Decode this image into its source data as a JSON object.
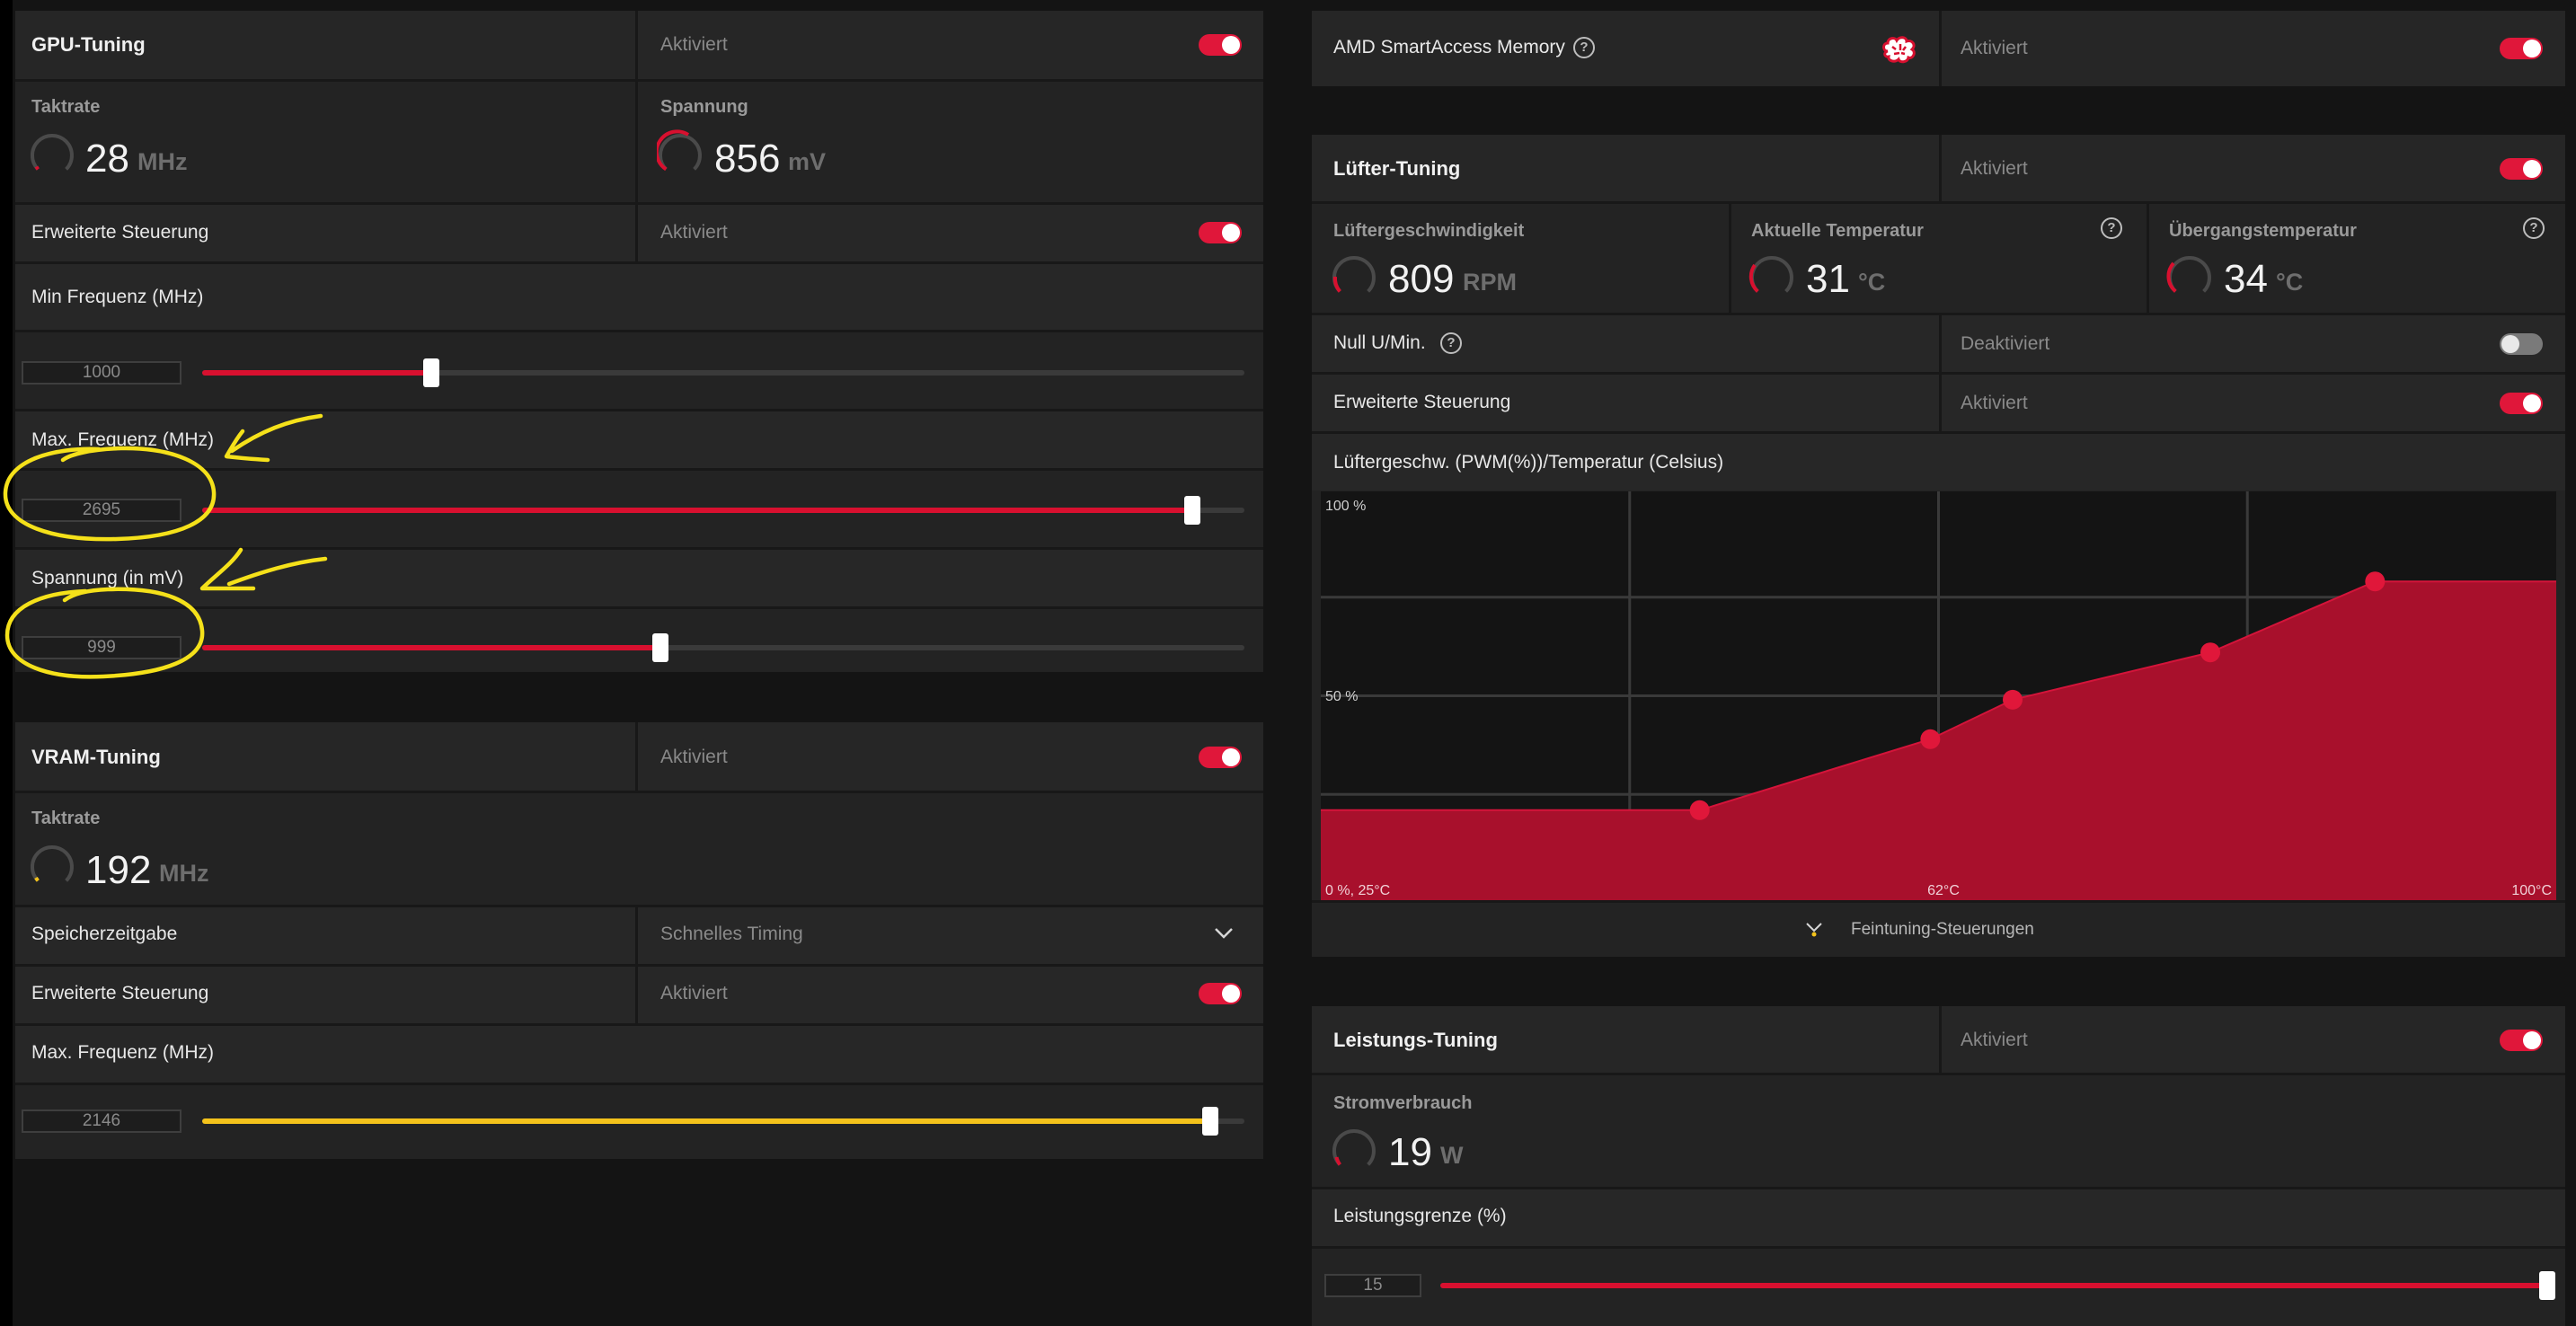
{
  "status_on": "Aktiviert",
  "status_off": "Deaktiviert",
  "colors": {
    "accent_red": "#d8102f",
    "accent_yellow": "#f3c21b",
    "annotation": "#f5e11a"
  },
  "gpu": {
    "title": "GPU-Tuning",
    "status": "Aktiviert",
    "enabled": true,
    "clock_label": "Taktrate",
    "clock_value": "28",
    "clock_unit": "MHz",
    "voltage_label": "Spannung",
    "voltage_value": "856",
    "voltage_unit": "mV",
    "advanced_label": "Erweiterte Steuerung",
    "advanced_status": "Aktiviert",
    "advanced_enabled": true,
    "min_freq": {
      "label": "Min Frequenz (MHz)",
      "value": "1000",
      "fill": 0.22
    },
    "max_freq": {
      "label": "Max. Frequenz (MHz)",
      "value": "2695",
      "fill": 0.95
    },
    "voltage_slider": {
      "label": "Spannung (in mV)",
      "value": "999",
      "fill": 0.44
    }
  },
  "vram": {
    "title": "VRAM-Tuning",
    "status": "Aktiviert",
    "enabled": true,
    "clock_label": "Taktrate",
    "clock_value": "192",
    "clock_unit": "MHz",
    "timing_label": "Speicherzeitgabe",
    "timing_value": "Schnelles Timing",
    "advanced_label": "Erweiterte Steuerung",
    "advanced_status": "Aktiviert",
    "advanced_enabled": true,
    "max_freq": {
      "label": "Max. Frequenz (MHz)",
      "value": "2146",
      "fill": 0.967
    }
  },
  "sam": {
    "title": "AMD SmartAccess Memory",
    "status": "Aktiviert",
    "enabled": true,
    "icon": "brain-icon"
  },
  "fan": {
    "title": "Lüfter-Tuning",
    "status": "Aktiviert",
    "enabled": true,
    "speed_label": "Lüftergeschwindigkeit",
    "speed_value": "809",
    "speed_unit": "RPM",
    "temp_label": "Aktuelle Temperatur",
    "temp_value": "31",
    "temp_unit": "°C",
    "junction_label": "Übergangstemperatur",
    "junction_value": "34",
    "junction_unit": "°C",
    "zero_rpm_label": "Null U/Min.",
    "zero_rpm_status": "Deaktiviert",
    "zero_rpm_enabled": false,
    "advanced_label": "Erweiterte Steuerung",
    "advanced_status": "Aktiviert",
    "advanced_enabled": true,
    "curve_label": "Lüftergeschw. (PWM(%))/Temperatur (Celsius)",
    "fine_tuning_label": "Feintuning-Steuerungen"
  },
  "power": {
    "title": "Leistungs-Tuning",
    "status": "Aktiviert",
    "enabled": true,
    "consumption_label": "Stromverbrauch",
    "consumption_value": "19",
    "consumption_unit": "W",
    "limit_label": "Leistungsgrenze (%)",
    "limit_value": "15",
    "limit_fill": 1.0
  },
  "chart_data": {
    "type": "area",
    "title": "Lüftergeschw. (PWM(%))/Temperatur (Celsius)",
    "x_tick_labels": [
      "0 %, 25°C",
      "62°C",
      "100°C"
    ],
    "y_tick_labels": [
      "100 %",
      "50 %"
    ],
    "xlim": [
      25,
      100
    ],
    "ylim": [
      0,
      100
    ],
    "grid": true,
    "x": [
      25,
      48,
      62,
      67,
      79,
      89,
      100
    ],
    "y": [
      21,
      21,
      39,
      49,
      61,
      79,
      79
    ],
    "control_points": [
      {
        "x": 48,
        "y": 21
      },
      {
        "x": 62,
        "y": 39
      },
      {
        "x": 67,
        "y": 49
      },
      {
        "x": 79,
        "y": 61
      },
      {
        "x": 89,
        "y": 79
      }
    ]
  }
}
